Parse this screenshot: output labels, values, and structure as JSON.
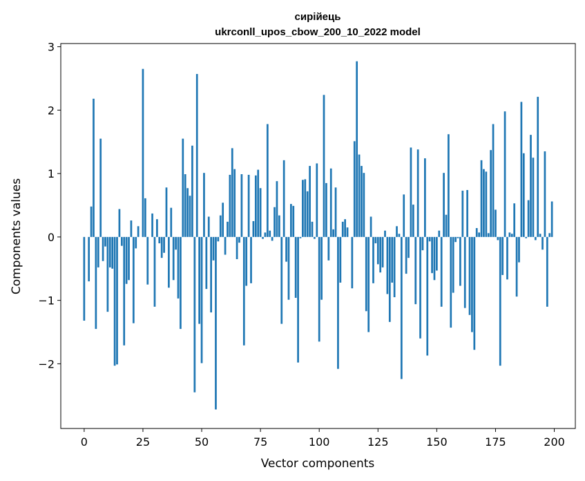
{
  "chart_data": {
    "type": "bar",
    "title_line1": "сирійець",
    "title_line2": "ukrconll_upos_cbow_200_10_2022 model",
    "xlabel": "Vector components",
    "ylabel": "Components values",
    "xlim": [
      -9.95,
      208.95
    ],
    "ylim": [
      -3.02,
      3.05
    ],
    "xticks": [
      0,
      25,
      50,
      75,
      100,
      125,
      150,
      175,
      200
    ],
    "xtick_labels": [
      "0",
      "25",
      "50",
      "75",
      "100",
      "125",
      "150",
      "175",
      "200"
    ],
    "yticks": [
      -2,
      -1,
      0,
      1,
      2,
      3
    ],
    "ytick_labels": [
      "−2",
      "−1",
      "0",
      "1",
      "2",
      "3"
    ],
    "bar_color": "#1f77b4",
    "grid": false,
    "values": [
      -1.32,
      0.0,
      -0.7,
      0.48,
      2.18,
      -1.45,
      -0.48,
      1.55,
      -0.38,
      -0.15,
      -1.18,
      -0.48,
      -0.5,
      -2.03,
      -2.01,
      0.44,
      -0.14,
      -1.71,
      -0.74,
      -0.68,
      0.26,
      -1.36,
      -0.18,
      0.17,
      0.0,
      2.65,
      0.61,
      -0.75,
      0.0,
      0.37,
      -1.1,
      0.28,
      -0.1,
      -0.33,
      -0.25,
      0.78,
      -0.8,
      0.46,
      -0.68,
      -0.2,
      -0.97,
      -1.45,
      1.55,
      0.99,
      0.77,
      0.65,
      1.44,
      -2.45,
      2.57,
      -1.37,
      -1.99,
      1.01,
      -0.82,
      0.32,
      -1.19,
      -0.37,
      -2.72,
      -0.07,
      0.34,
      0.54,
      -0.28,
      0.24,
      0.98,
      1.4,
      1.07,
      -0.35,
      -0.09,
      0.99,
      -1.71,
      -0.77,
      0.98,
      -0.73,
      0.25,
      0.97,
      1.06,
      0.77,
      -0.03,
      0.07,
      1.78,
      0.1,
      -0.06,
      0.47,
      0.88,
      0.34,
      -1.37,
      1.21,
      -0.39,
      -0.99,
      0.52,
      0.49,
      -0.96,
      -1.98,
      -0.02,
      0.9,
      0.91,
      0.72,
      1.12,
      0.24,
      -0.03,
      1.16,
      -1.65,
      -0.99,
      2.24,
      0.85,
      -0.37,
      1.08,
      0.12,
      0.78,
      -2.08,
      -0.72,
      0.24,
      0.28,
      0.15,
      0.0,
      -0.81,
      1.51,
      2.77,
      1.3,
      1.12,
      1.01,
      -1.17,
      -1.5,
      0.32,
      -0.73,
      -0.1,
      -0.43,
      -0.56,
      -0.48,
      0.1,
      -0.9,
      -1.34,
      -0.72,
      -0.95,
      0.17,
      0.05,
      -2.24,
      0.67,
      -0.58,
      -0.33,
      1.41,
      0.51,
      -1.06,
      1.38,
      -1.6,
      -0.21,
      1.24,
      -1.87,
      -0.07,
      -0.57,
      -0.68,
      -0.53,
      0.1,
      -1.1,
      1.01,
      0.35,
      1.62,
      -1.43,
      -0.88,
      -0.08,
      -0.02,
      -0.77,
      0.73,
      -1.12,
      0.74,
      -1.23,
      -1.5,
      -1.78,
      0.14,
      0.07,
      1.21,
      1.07,
      1.03,
      0.06,
      1.37,
      1.78,
      0.43,
      -0.05,
      -2.03,
      -0.6,
      1.98,
      -0.67,
      0.07,
      0.05,
      0.53,
      -0.94,
      -0.4,
      2.13,
      1.32,
      -0.02,
      0.58,
      1.61,
      1.25,
      -0.05,
      2.21,
      0.05,
      -0.2,
      1.35,
      -1.1,
      0.06,
      0.56
    ]
  }
}
